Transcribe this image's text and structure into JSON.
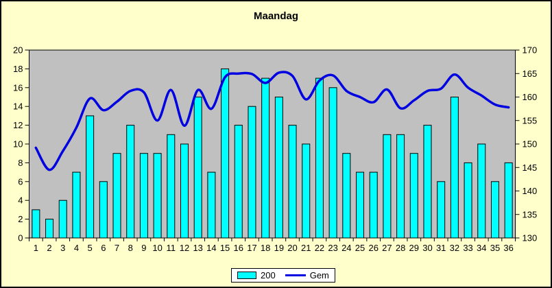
{
  "window": {
    "background": "#FFFFCC",
    "border_color": "#000000"
  },
  "chart_data": {
    "type": "bar",
    "title": "Maandag",
    "plot_background": "#C0C0C0",
    "grid": false,
    "legend_position": "bottom-center",
    "categories": [
      1,
      2,
      3,
      4,
      5,
      6,
      7,
      8,
      9,
      10,
      11,
      12,
      13,
      14,
      15,
      16,
      17,
      18,
      19,
      20,
      21,
      22,
      23,
      24,
      25,
      26,
      27,
      28,
      29,
      30,
      31,
      32,
      33,
      34,
      35,
      36
    ],
    "series": [
      {
        "name": "200",
        "type": "bar",
        "axis": "left",
        "color": "#00FFFF",
        "values": [
          3,
          2,
          4,
          7,
          13,
          6,
          9,
          12,
          9,
          9,
          11,
          10,
          15,
          7,
          18,
          12,
          14,
          17,
          15,
          12,
          10,
          17,
          16,
          9,
          7,
          7,
          11,
          11,
          9,
          12,
          6,
          15,
          8,
          10,
          6,
          8
        ]
      },
      {
        "name": "Gem",
        "type": "line",
        "axis": "right",
        "color": "#0000E0",
        "smooth": true,
        "values": [
          149.2,
          144.5,
          148.5,
          153.5,
          159.7,
          157.2,
          159.0,
          161.3,
          161.0,
          155.0,
          161.5,
          153.9,
          161.5,
          157.5,
          164.2,
          165.0,
          164.9,
          163.0,
          165.2,
          164.5,
          159.5,
          163.5,
          164.6,
          161.3,
          160.0,
          158.9,
          161.6,
          157.6,
          159.3,
          161.3,
          161.8,
          164.8,
          162.0,
          160.3,
          158.4,
          157.8
        ]
      }
    ],
    "left_axis": {
      "min": 0,
      "max": 20,
      "ticks": [
        0,
        2,
        4,
        6,
        8,
        10,
        12,
        14,
        16,
        18,
        20
      ]
    },
    "right_axis": {
      "min": 130,
      "max": 170,
      "ticks": [
        130,
        135,
        140,
        145,
        150,
        155,
        160,
        165,
        170
      ]
    }
  }
}
